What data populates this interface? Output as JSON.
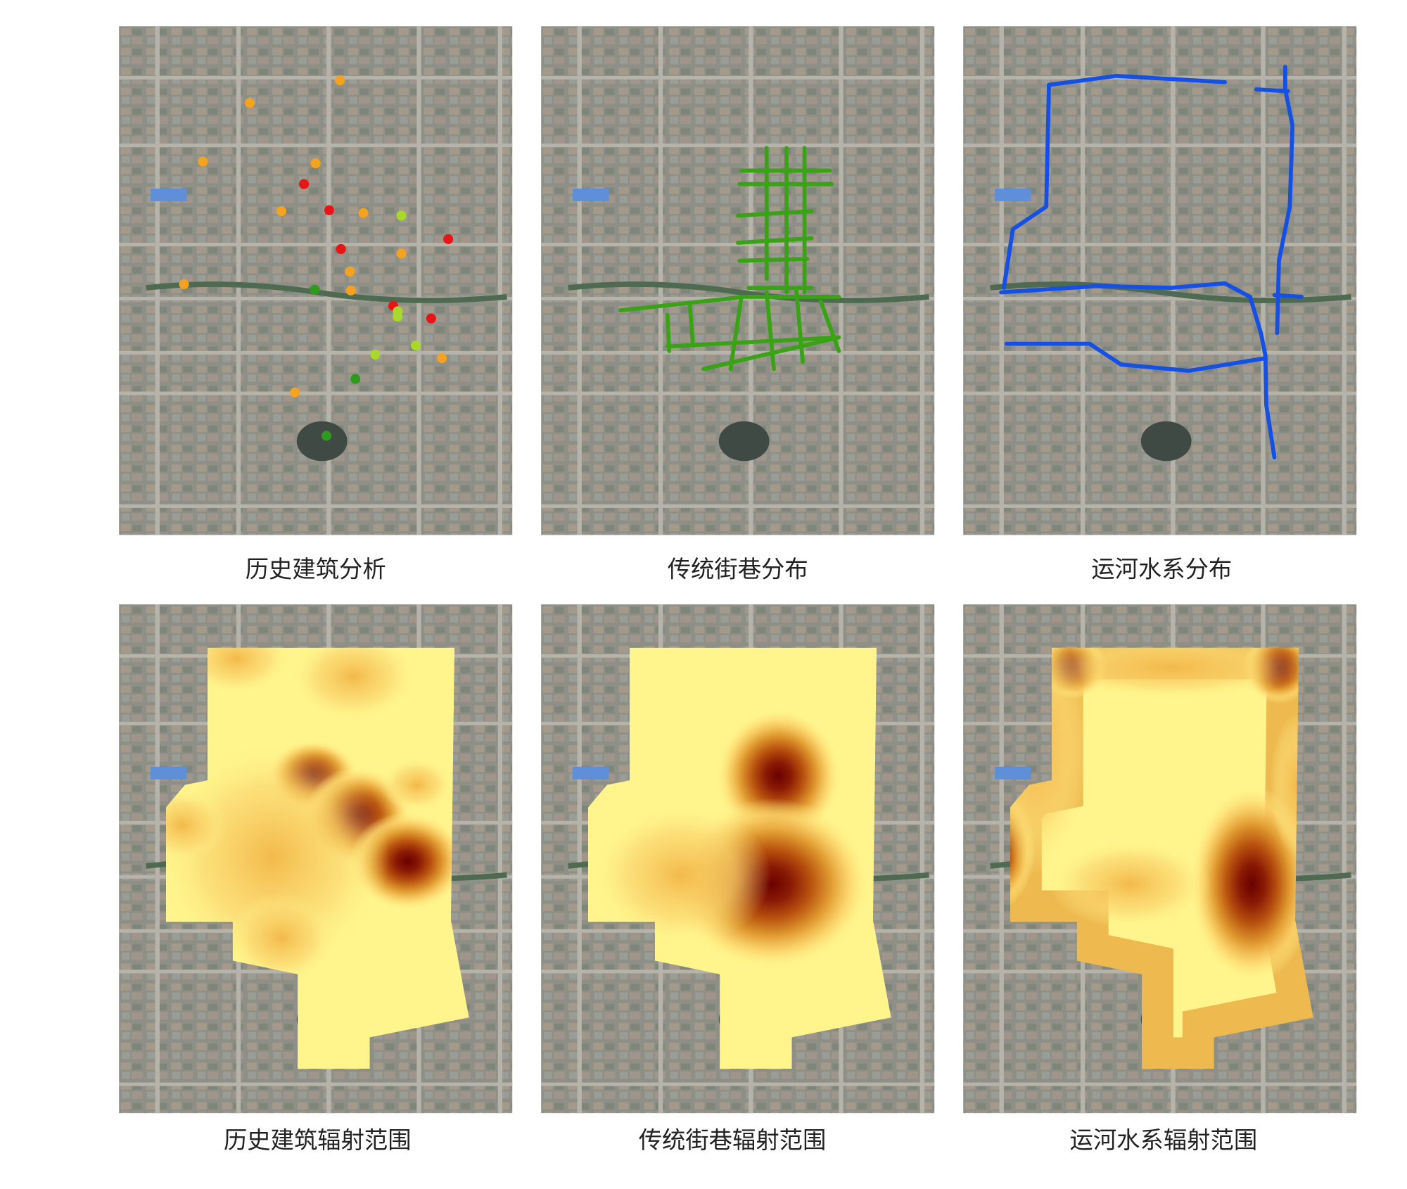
{
  "panels": [
    {
      "caption": "历史建筑分析",
      "type": "points"
    },
    {
      "caption": "传统街巷分布",
      "type": "streets"
    },
    {
      "caption": "运河水系分布",
      "type": "canals"
    },
    {
      "caption": "历史建筑辐射范围",
      "type": "heatmap"
    },
    {
      "caption": "传统街巷辐射范围",
      "type": "heatmap"
    },
    {
      "caption": "运河水系辐射范围",
      "type": "heatmap"
    }
  ],
  "colors": {
    "point_orange": "#f5a21f",
    "point_red": "#e81416",
    "point_lightgreen": "#a8d92a",
    "point_green": "#2e9a1e",
    "street": "#3aa315",
    "canal": "#1450e6",
    "heat_low": "#fff58c",
    "heat_high": "#6a0000"
  }
}
